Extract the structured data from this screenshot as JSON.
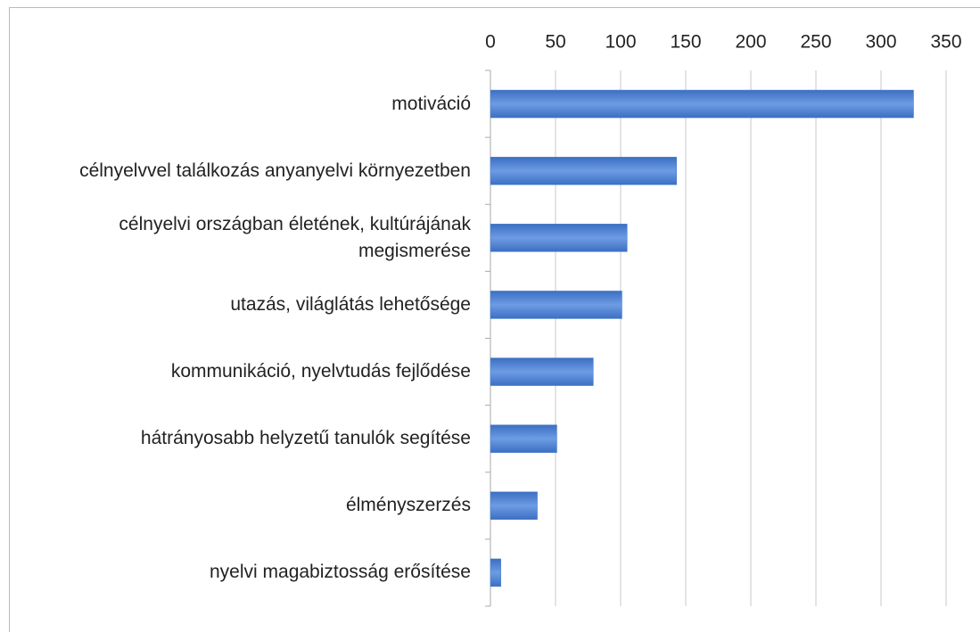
{
  "chart_data": {
    "type": "bar",
    "orientation": "horizontal",
    "categories": [
      "motiváció",
      "célnyelvvel találkozás anyanyelvi környezetben",
      "célnyelvi országban életének, kultúrájának megismerése",
      "utazás, világlátás lehetősége",
      "kommunikáció, nyelvtudás fejlődése",
      "hátrányosabb helyzetű tanulók segítése",
      "élményszerzés",
      "nyelvi magabiztosság erősítése"
    ],
    "values": [
      325,
      143,
      105,
      101,
      79,
      51,
      36,
      8
    ],
    "color": "#4a7fd0",
    "xlim": [
      0,
      350
    ],
    "xticks": [
      0,
      50,
      100,
      150,
      200,
      250,
      300,
      350
    ],
    "grid": true
  }
}
